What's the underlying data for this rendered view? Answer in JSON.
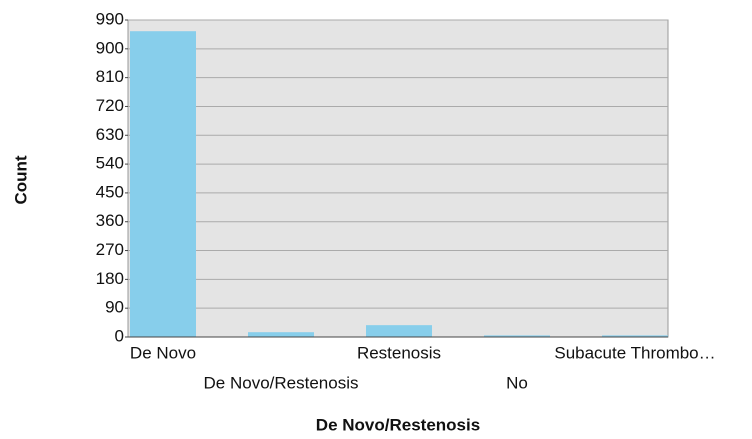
{
  "chart_data": {
    "type": "bar",
    "x_label": "De Novo/Restenosis",
    "y_label": "Count",
    "categories": [
      "De Novo",
      "De Novo/Restenosis",
      "Restenosis",
      "No",
      "Subacute Thrombo…"
    ],
    "values": [
      955,
      15,
      37,
      5,
      5
    ],
    "color": "#87ceeb",
    "ylim": [
      0,
      990
    ],
    "yticks": [
      0,
      90,
      180,
      270,
      360,
      450,
      540,
      630,
      720,
      810,
      900,
      990
    ],
    "grid": true
  }
}
